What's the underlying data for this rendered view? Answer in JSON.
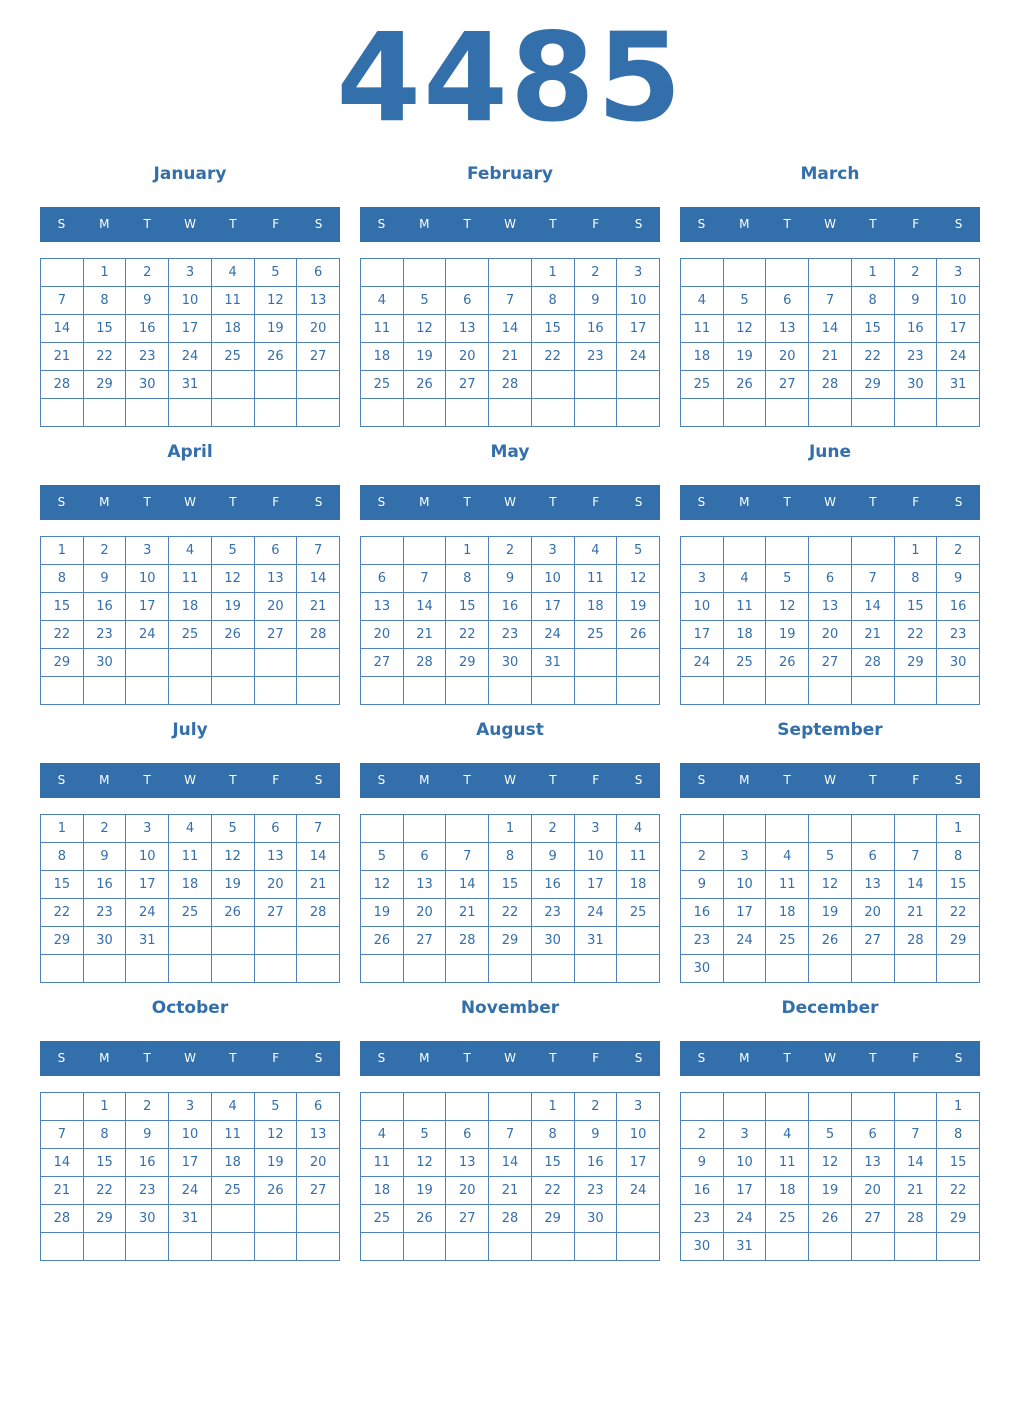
{
  "year": "4485",
  "weekday_labels": [
    "S",
    "M",
    "T",
    "W",
    "T",
    "F",
    "S"
  ],
  "accent_color": "#336faa",
  "months": [
    {
      "name": "January",
      "first_weekday": 1,
      "days": 31
    },
    {
      "name": "February",
      "first_weekday": 4,
      "days": 28
    },
    {
      "name": "March",
      "first_weekday": 4,
      "days": 31
    },
    {
      "name": "April",
      "first_weekday": 0,
      "days": 30
    },
    {
      "name": "May",
      "first_weekday": 2,
      "days": 31
    },
    {
      "name": "June",
      "first_weekday": 5,
      "days": 30
    },
    {
      "name": "July",
      "first_weekday": 0,
      "days": 31
    },
    {
      "name": "August",
      "first_weekday": 3,
      "days": 31
    },
    {
      "name": "September",
      "first_weekday": 6,
      "days": 30
    },
    {
      "name": "October",
      "first_weekday": 1,
      "days": 31
    },
    {
      "name": "November",
      "first_weekday": 4,
      "days": 30
    },
    {
      "name": "December",
      "first_weekday": 6,
      "days": 31
    }
  ]
}
